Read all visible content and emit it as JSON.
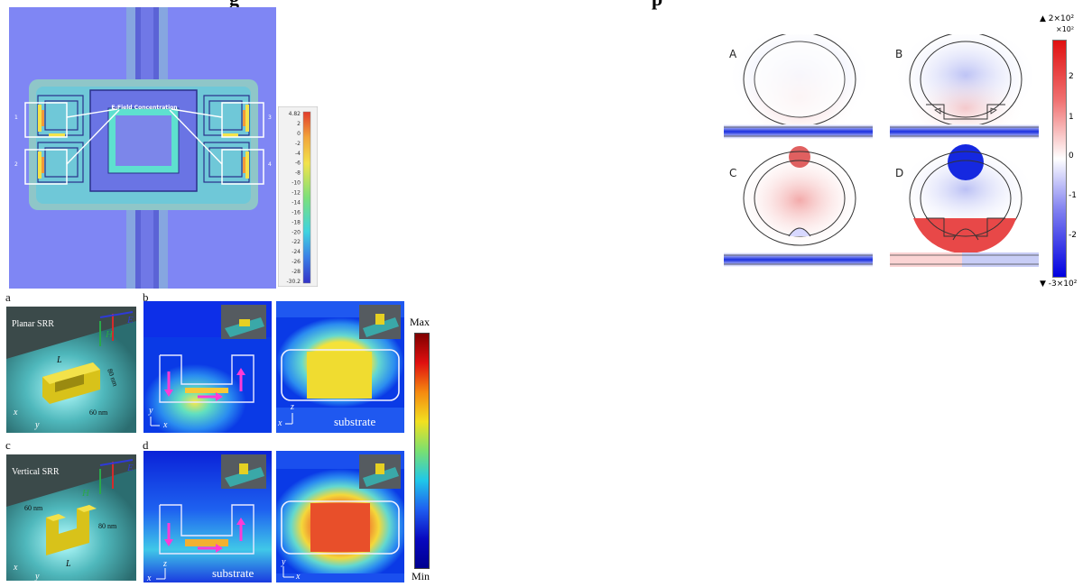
{
  "top_fragment": {
    "left": "g",
    "right": "p"
  },
  "figure_1": {
    "annotation": "E-Field Concentration",
    "port_labels": [
      "1",
      "2",
      "3",
      "4"
    ],
    "colorbar": {
      "ticks": [
        "4.82",
        "2",
        "0",
        "-2",
        "-4",
        "-6",
        "-8",
        "-10",
        "-12",
        "-14",
        "-16",
        "-18",
        "-20",
        "-22",
        "-24",
        "-26",
        "-28",
        "-30.2"
      ]
    }
  },
  "figure_2": {
    "panel_labels": [
      "a",
      "b",
      "c",
      "d"
    ],
    "panel_a": {
      "title": "Planar SRR",
      "dim_width": "60 nm",
      "dim_height": "80 nm",
      "dim_length": "L"
    },
    "panel_c": {
      "title": "Vertical SRR",
      "dim_width": "60 nm",
      "dim_height": "80 nm",
      "dim_length": "L"
    },
    "field_symbols": {
      "e": "E",
      "h": "H"
    },
    "axis_letters": {
      "x": "x",
      "y": "y",
      "z": "z"
    },
    "substrate_label": "substrate",
    "colorbar": {
      "max": "Max",
      "min": "Min"
    }
  },
  "figure_3": {
    "panel_labels": [
      "A",
      "B",
      "C",
      "D"
    ],
    "colorbar": {
      "top": "▲ 2×10²",
      "multiplier": "×10²",
      "ticks": [
        "2",
        "1",
        "0",
        "-1",
        "-2"
      ],
      "bottom": "▼ -3×10²"
    }
  },
  "colors": {
    "fig1_background": "#7f86f4",
    "field_hot": "#f4e34a",
    "field_cool": "#55d6c0",
    "substrate_teal": "#2e6e6e",
    "deep_blue": "#0a1ad8",
    "ring_red": "#e64b4b"
  }
}
